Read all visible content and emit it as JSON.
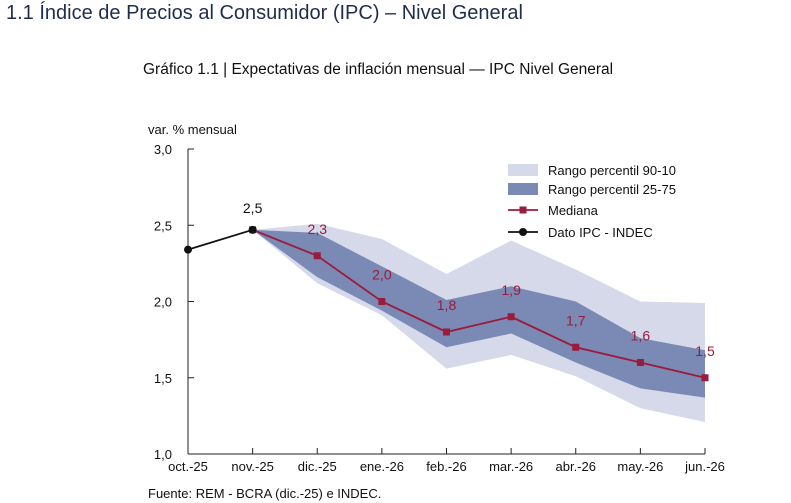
{
  "page_title": "1.1 Índice de Precios al Consumidor (IPC) – Nivel General",
  "chart_data": {
    "type": "line",
    "title": "Gráfico 1.1 | Expectativas de inflación mensual — IPC Nivel General",
    "ylabel": "var. % mensual",
    "xlabel": "",
    "ylim": [
      1.0,
      3.0
    ],
    "yticks": [
      "1,0",
      "1,5",
      "2,0",
      "2,5",
      "3,0"
    ],
    "ytick_values": [
      1.0,
      1.5,
      2.0,
      2.5,
      3.0
    ],
    "categories": [
      "oct.-25",
      "nov.-25",
      "dic.-25",
      "ene.-26",
      "feb.-26",
      "mar.-26",
      "abr.-26",
      "may.-26",
      "jun.-26"
    ],
    "legend_position": "top-right",
    "series": [
      {
        "name": "Rango percentil 90-10",
        "type": "band",
        "color": "#d5d9ea",
        "lower": [
          null,
          2.47,
          2.12,
          1.91,
          1.56,
          1.65,
          1.51,
          1.3,
          1.21
        ],
        "upper": [
          null,
          2.47,
          2.51,
          2.41,
          2.18,
          2.4,
          2.21,
          2.0,
          1.99
        ]
      },
      {
        "name": "Rango percentil 25-75",
        "type": "band",
        "color": "#7b89b5",
        "lower": [
          null,
          2.47,
          2.16,
          1.94,
          1.7,
          1.79,
          1.6,
          1.43,
          1.37
        ],
        "upper": [
          null,
          2.47,
          2.45,
          2.23,
          2.01,
          2.1,
          2.0,
          1.76,
          1.68
        ]
      },
      {
        "name": "Mediana",
        "type": "line",
        "color": "#9b1b3c",
        "marker": "square",
        "values": [
          null,
          2.47,
          2.3,
          2.0,
          1.8,
          1.9,
          1.7,
          1.6,
          1.5
        ],
        "labels": [
          null,
          null,
          "2,3",
          "2,0",
          "1,8",
          "1,9",
          "1,7",
          "1,6",
          "1,5"
        ]
      },
      {
        "name": "Dato IPC - INDEC",
        "type": "line",
        "color": "#111111",
        "marker": "circle",
        "values": [
          2.34,
          2.47,
          null,
          null,
          null,
          null,
          null,
          null,
          null
        ],
        "labels": [
          null,
          "2,5",
          null,
          null,
          null,
          null,
          null,
          null,
          null
        ]
      }
    ],
    "source": "Fuente: REM - BCRA (dic.-25) e INDEC."
  }
}
